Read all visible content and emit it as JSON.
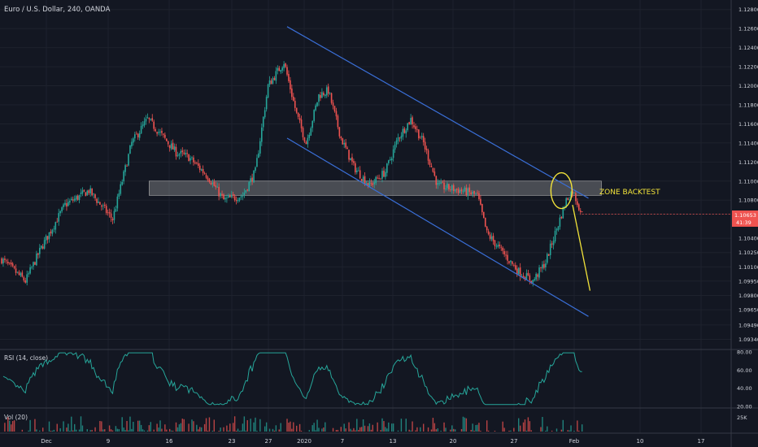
{
  "header": {
    "title": "Euro / U.S. Dollar, 240, OANDA"
  },
  "price_axis": {
    "ticks": [
      "1.12800",
      "1.12600",
      "1.12400",
      "1.12200",
      "1.12000",
      "1.11800",
      "1.11600",
      "1.11400",
      "1.11200",
      "1.11000",
      "1.10800",
      "1.10653",
      "1.10400",
      "1.10250",
      "1.10100",
      "1.09950",
      "1.09800",
      "1.09650",
      "1.09490",
      "1.09340"
    ],
    "current_price": "1.10653",
    "countdown": "41:39"
  },
  "time_axis": {
    "ticks": [
      "Dec",
      "9",
      "16",
      "23",
      "27",
      "2020",
      "7",
      "13",
      "20",
      "27",
      "Feb",
      "10",
      "17"
    ]
  },
  "annotations": {
    "zone_label": "ZONE BACKTEST"
  },
  "rsi": {
    "label": "RSI (14, close)",
    "ticks": [
      "80.00",
      "60.00",
      "40.00",
      "20.00"
    ]
  },
  "volume": {
    "label": "Vol (20)",
    "ticks": [
      "25K"
    ]
  },
  "colors": {
    "background": "#131722",
    "bull": "#26a69a",
    "bear": "#ef5350",
    "channel": "#3a6fd8",
    "zone_fill": "#c8c8c8",
    "annotation": "#f2e33a",
    "rsi_line": "#26a69a",
    "price_badge": "#ef5350"
  },
  "chart_data": {
    "type": "candlestick",
    "title": "Euro / U.S. Dollar, 240, OANDA",
    "ylim": [
      1.0925,
      1.129
    ],
    "price_anchors": [
      [
        0,
        1.1018
      ],
      [
        15,
        1.0995
      ],
      [
        25,
        1.103
      ],
      [
        40,
        1.1075
      ],
      [
        55,
        1.109
      ],
      [
        70,
        1.106
      ],
      [
        82,
        1.114
      ],
      [
        92,
        1.1165
      ],
      [
        100,
        1.115
      ],
      [
        110,
        1.113
      ],
      [
        118,
        1.1125
      ],
      [
        130,
        1.1105
      ],
      [
        140,
        1.108
      ],
      [
        152,
        1.1085
      ],
      [
        160,
        1.111
      ],
      [
        168,
        1.12
      ],
      [
        178,
        1.1225
      ],
      [
        186,
        1.117
      ],
      [
        192,
        1.114
      ],
      [
        200,
        1.119
      ],
      [
        206,
        1.1195
      ],
      [
        214,
        1.1145
      ],
      [
        222,
        1.1115
      ],
      [
        232,
        1.1095
      ],
      [
        242,
        1.111
      ],
      [
        250,
        1.1145
      ],
      [
        258,
        1.1165
      ],
      [
        266,
        1.114
      ],
      [
        275,
        1.1095
      ],
      [
        290,
        1.109
      ],
      [
        300,
        1.1085
      ],
      [
        306,
        1.1045
      ],
      [
        316,
        1.1025
      ],
      [
        326,
        1.1005
      ],
      [
        335,
        1.0995
      ],
      [
        343,
        1.1015
      ],
      [
        350,
        1.105
      ],
      [
        356,
        1.108
      ],
      [
        360,
        1.109
      ],
      [
        366,
        1.1065
      ]
    ],
    "channel_upper": [
      [
        180,
        1.1262
      ],
      [
        370,
        1.1082
      ]
    ],
    "channel_lower": [
      [
        180,
        1.1145
      ],
      [
        370,
        1.0958
      ]
    ],
    "zone": {
      "from": 1.1085,
      "to": 1.11,
      "start_index": 93
    },
    "forecast_arrow": [
      [
        360,
        1.1075
      ],
      [
        371,
        1.0985
      ]
    ],
    "circle_center": [
      353,
      1.109
    ],
    "rsi_ylim": [
      20,
      80
    ],
    "volume_max": 25000
  }
}
